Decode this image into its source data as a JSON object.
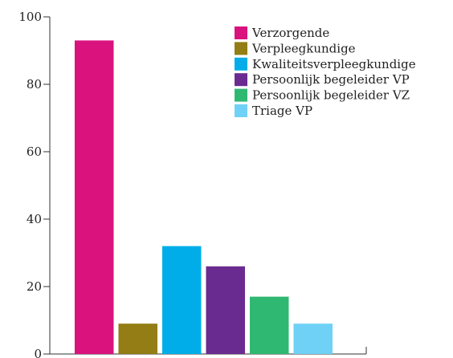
{
  "chart_data": {
    "type": "bar",
    "title": "",
    "xlabel": "",
    "ylabel": "",
    "ylim": [
      0,
      100
    ],
    "yticks": [
      0,
      20,
      40,
      60,
      80,
      100
    ],
    "ytick_labels": [
      "0",
      "20",
      "40",
      "60",
      "80",
      "100"
    ],
    "grid": false,
    "legend_position": "top-right",
    "series": [
      {
        "name": "Verzorgende",
        "value": 93,
        "color": "#d9127e"
      },
      {
        "name": "Verpleegkundige",
        "value": 9,
        "color": "#937d14"
      },
      {
        "name": "Kwaliteitsverpleegkundige",
        "value": 32,
        "color": "#00ade9"
      },
      {
        "name": "Persoonlijk begeleider VP",
        "value": 26,
        "color": "#6a2b90"
      },
      {
        "name": "Persoonlijk begeleider VZ",
        "value": 17,
        "color": "#2fb872"
      },
      {
        "name": "Triage VP",
        "value": 9,
        "color": "#6fd1f6"
      }
    ]
  }
}
